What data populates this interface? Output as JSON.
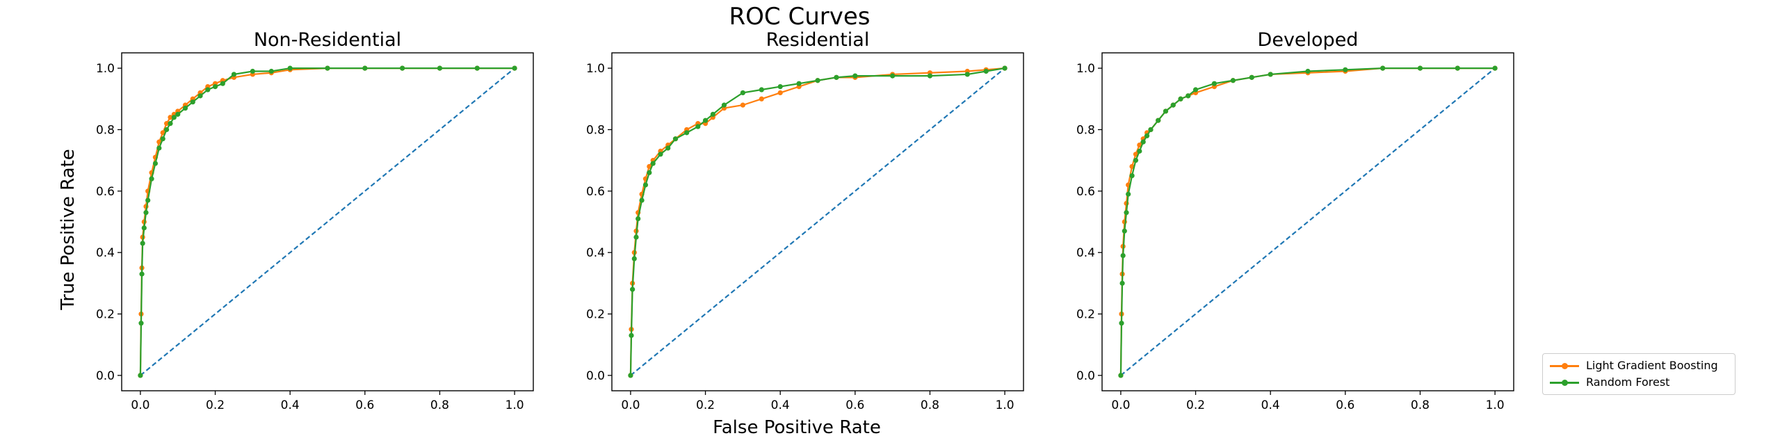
{
  "figure": {
    "title": "ROC Curves",
    "xlabel": "False Positive Rate",
    "ylabel": "True Positive Rate"
  },
  "legend": {
    "placement": "lower-right-outside",
    "entries": [
      {
        "name": "Light Gradient Boosting",
        "color": "#ff7f0e"
      },
      {
        "name": "Random Forest",
        "color": "#2ca02c"
      }
    ]
  },
  "colors": {
    "diagonal": "#1f77b4",
    "lgb": "#ff7f0e",
    "rf": "#2ca02c"
  },
  "chart_data": [
    {
      "type": "line",
      "title": "Non-Residential",
      "xlim": [
        -0.05,
        1.05
      ],
      "ylim": [
        -0.05,
        1.05
      ],
      "xticks": [
        "0.0",
        "0.2",
        "0.4",
        "0.6",
        "0.8",
        "1.0"
      ],
      "yticks": [
        "0.0",
        "0.2",
        "0.4",
        "0.6",
        "0.8",
        "1.0"
      ],
      "grid": false,
      "series": [
        {
          "name": "Light Gradient Boosting",
          "x": [
            0,
            0.002,
            0.004,
            0.006,
            0.01,
            0.015,
            0.02,
            0.03,
            0.04,
            0.05,
            0.06,
            0.07,
            0.08,
            0.09,
            0.1,
            0.12,
            0.14,
            0.16,
            0.18,
            0.2,
            0.22,
            0.25,
            0.3,
            0.35,
            0.4,
            0.5,
            0.6,
            0.7,
            0.8,
            0.9,
            1.0
          ],
          "y": [
            0,
            0.2,
            0.35,
            0.45,
            0.5,
            0.55,
            0.6,
            0.66,
            0.71,
            0.76,
            0.79,
            0.82,
            0.84,
            0.85,
            0.86,
            0.88,
            0.9,
            0.92,
            0.94,
            0.95,
            0.96,
            0.97,
            0.98,
            0.985,
            0.995,
            1.0,
            1.0,
            1.0,
            1.0,
            1.0,
            1.0
          ]
        },
        {
          "name": "Random Forest",
          "x": [
            0,
            0.002,
            0.004,
            0.006,
            0.01,
            0.015,
            0.02,
            0.03,
            0.04,
            0.05,
            0.06,
            0.07,
            0.08,
            0.09,
            0.1,
            0.12,
            0.14,
            0.16,
            0.18,
            0.2,
            0.22,
            0.25,
            0.3,
            0.35,
            0.4,
            0.5,
            0.6,
            0.7,
            0.8,
            0.9,
            1.0
          ],
          "y": [
            0,
            0.17,
            0.33,
            0.43,
            0.48,
            0.53,
            0.57,
            0.64,
            0.69,
            0.74,
            0.77,
            0.8,
            0.82,
            0.84,
            0.85,
            0.87,
            0.89,
            0.91,
            0.93,
            0.94,
            0.95,
            0.98,
            0.99,
            0.99,
            1.0,
            1.0,
            1.0,
            1.0,
            1.0,
            1.0,
            1.0
          ]
        },
        {
          "name": "",
          "x": [
            0,
            1
          ],
          "y": [
            0,
            1
          ]
        }
      ]
    },
    {
      "type": "line",
      "title": "Residential",
      "xlim": [
        -0.05,
        1.05
      ],
      "ylim": [
        -0.05,
        1.05
      ],
      "xticks": [
        "0.0",
        "0.2",
        "0.4",
        "0.6",
        "0.8",
        "1.0"
      ],
      "yticks": [
        "0.0",
        "0.2",
        "0.4",
        "0.6",
        "0.8",
        "1.0"
      ],
      "grid": false,
      "series": [
        {
          "name": "Light Gradient Boosting",
          "x": [
            0,
            0.002,
            0.005,
            0.01,
            0.015,
            0.02,
            0.03,
            0.04,
            0.05,
            0.06,
            0.08,
            0.1,
            0.12,
            0.15,
            0.18,
            0.2,
            0.22,
            0.25,
            0.3,
            0.35,
            0.4,
            0.45,
            0.5,
            0.55,
            0.6,
            0.7,
            0.8,
            0.9,
            0.95,
            1.0
          ],
          "y": [
            0,
            0.15,
            0.3,
            0.4,
            0.47,
            0.53,
            0.59,
            0.64,
            0.68,
            0.7,
            0.73,
            0.75,
            0.77,
            0.8,
            0.82,
            0.82,
            0.84,
            0.87,
            0.88,
            0.9,
            0.92,
            0.94,
            0.96,
            0.97,
            0.97,
            0.98,
            0.985,
            0.99,
            0.995,
            1.0
          ]
        },
        {
          "name": "Random Forest",
          "x": [
            0,
            0.002,
            0.005,
            0.01,
            0.015,
            0.02,
            0.03,
            0.04,
            0.05,
            0.06,
            0.08,
            0.1,
            0.12,
            0.15,
            0.18,
            0.2,
            0.22,
            0.25,
            0.3,
            0.35,
            0.4,
            0.45,
            0.5,
            0.55,
            0.6,
            0.7,
            0.8,
            0.9,
            0.95,
            1.0
          ],
          "y": [
            0,
            0.13,
            0.28,
            0.38,
            0.45,
            0.51,
            0.57,
            0.62,
            0.66,
            0.69,
            0.72,
            0.74,
            0.77,
            0.79,
            0.81,
            0.83,
            0.85,
            0.88,
            0.92,
            0.93,
            0.94,
            0.95,
            0.96,
            0.97,
            0.975,
            0.975,
            0.975,
            0.98,
            0.99,
            1.0
          ]
        },
        {
          "name": "",
          "x": [
            0,
            1
          ],
          "y": [
            0,
            1
          ]
        }
      ]
    },
    {
      "type": "line",
      "title": "Developed",
      "xlim": [
        -0.05,
        1.05
      ],
      "ylim": [
        -0.05,
        1.05
      ],
      "xticks": [
        "0.0",
        "0.2",
        "0.4",
        "0.6",
        "0.8",
        "1.0"
      ],
      "yticks": [
        "0.0",
        "0.2",
        "0.4",
        "0.6",
        "0.8",
        "1.0"
      ],
      "grid": false,
      "series": [
        {
          "name": "Light Gradient Boosting",
          "x": [
            0,
            0.002,
            0.004,
            0.006,
            0.01,
            0.015,
            0.02,
            0.03,
            0.04,
            0.05,
            0.06,
            0.07,
            0.08,
            0.1,
            0.12,
            0.14,
            0.16,
            0.18,
            0.2,
            0.25,
            0.3,
            0.35,
            0.4,
            0.5,
            0.6,
            0.7,
            0.8,
            0.9,
            1.0
          ],
          "y": [
            0,
            0.2,
            0.33,
            0.42,
            0.5,
            0.56,
            0.62,
            0.68,
            0.72,
            0.75,
            0.77,
            0.79,
            0.8,
            0.83,
            0.86,
            0.88,
            0.9,
            0.91,
            0.92,
            0.94,
            0.96,
            0.97,
            0.98,
            0.985,
            0.99,
            1.0,
            1.0,
            1.0,
            1.0
          ]
        },
        {
          "name": "Random Forest",
          "x": [
            0,
            0.002,
            0.004,
            0.006,
            0.01,
            0.015,
            0.02,
            0.03,
            0.04,
            0.05,
            0.06,
            0.07,
            0.08,
            0.1,
            0.12,
            0.14,
            0.16,
            0.18,
            0.2,
            0.25,
            0.3,
            0.35,
            0.4,
            0.5,
            0.6,
            0.7,
            0.8,
            0.9,
            1.0
          ],
          "y": [
            0,
            0.17,
            0.3,
            0.39,
            0.47,
            0.53,
            0.59,
            0.65,
            0.7,
            0.73,
            0.76,
            0.78,
            0.8,
            0.83,
            0.86,
            0.88,
            0.9,
            0.91,
            0.93,
            0.95,
            0.96,
            0.97,
            0.98,
            0.99,
            0.995,
            1.0,
            1.0,
            1.0,
            1.0
          ]
        },
        {
          "name": "",
          "x": [
            0,
            1
          ],
          "y": [
            0,
            1
          ]
        }
      ]
    }
  ]
}
